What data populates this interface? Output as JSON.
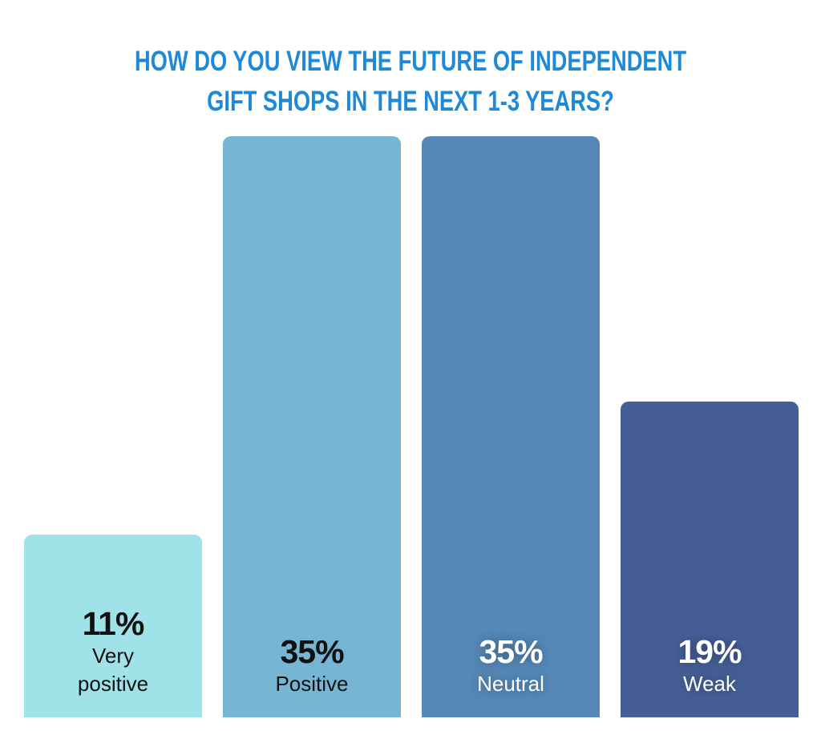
{
  "chart_data": {
    "type": "bar",
    "title_lines": [
      "HOW DO YOU VIEW THE FUTURE OF INDEPENDENT",
      "GIFT SHOPS IN THE NEXT 1-3 YEARS?"
    ],
    "categories": [
      "Very positive",
      "Positive",
      "Neutral",
      "Weak"
    ],
    "category_lines": [
      [
        "Very",
        "positive"
      ],
      [
        "Positive"
      ],
      [
        "Neutral"
      ],
      [
        "Weak"
      ]
    ],
    "values": [
      11,
      35,
      35,
      19
    ],
    "value_labels": [
      "11%",
      "35%",
      "35%",
      "19%"
    ],
    "unit": "%",
    "ylim": [
      0,
      35
    ],
    "grid": false,
    "legend": "none",
    "colors": [
      "#9fe2e7",
      "#76b5d4",
      "#5588b7",
      "#455f96"
    ],
    "title_color": "#1e89d6"
  }
}
